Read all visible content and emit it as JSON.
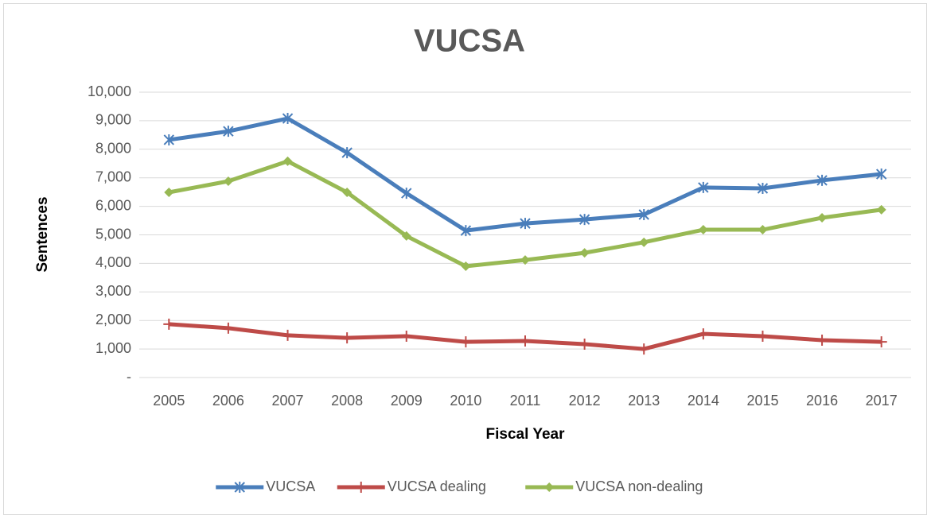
{
  "chart_data": {
    "type": "line",
    "title": "VUCSA",
    "x_label": "Fiscal Year",
    "y_label": "Sentences",
    "categories": [
      "2005",
      "2006",
      "2007",
      "2008",
      "2009",
      "2010",
      "2011",
      "2012",
      "2013",
      "2014",
      "2015",
      "2016",
      "2017"
    ],
    "series": [
      {
        "name": "VUCSA",
        "color": "#4a7ebb",
        "marker": "asterisk",
        "values": [
          8330,
          8630,
          9080,
          7880,
          6460,
          5150,
          5400,
          5540,
          5710,
          6660,
          6630,
          6910,
          7130
        ]
      },
      {
        "name": "VUCSA dealing",
        "color": "#be4b48",
        "marker": "plus",
        "values": [
          1870,
          1730,
          1480,
          1390,
          1450,
          1250,
          1280,
          1170,
          1000,
          1530,
          1450,
          1310,
          1250
        ]
      },
      {
        "name": "VUCSA non-dealing",
        "color": "#98b954",
        "marker": "diamond",
        "values": [
          6490,
          6880,
          7580,
          6490,
          4960,
          3900,
          4120,
          4370,
          4740,
          5180,
          5180,
          5600,
          5880
        ]
      }
    ],
    "ylim": [
      0,
      10000
    ],
    "yticks": [
      {
        "value": 0,
        "label": "-"
      },
      {
        "value": 1000,
        "label": "1,000"
      },
      {
        "value": 2000,
        "label": "2,000"
      },
      {
        "value": 3000,
        "label": "3,000"
      },
      {
        "value": 4000,
        "label": "4,000"
      },
      {
        "value": 5000,
        "label": "5,000"
      },
      {
        "value": 6000,
        "label": "6,000"
      },
      {
        "value": 7000,
        "label": "7,000"
      },
      {
        "value": 8000,
        "label": "8,000"
      },
      {
        "value": 9000,
        "label": "9,000"
      },
      {
        "value": 10000,
        "label": "10,000"
      }
    ],
    "grid": true,
    "legend": "bottom"
  }
}
